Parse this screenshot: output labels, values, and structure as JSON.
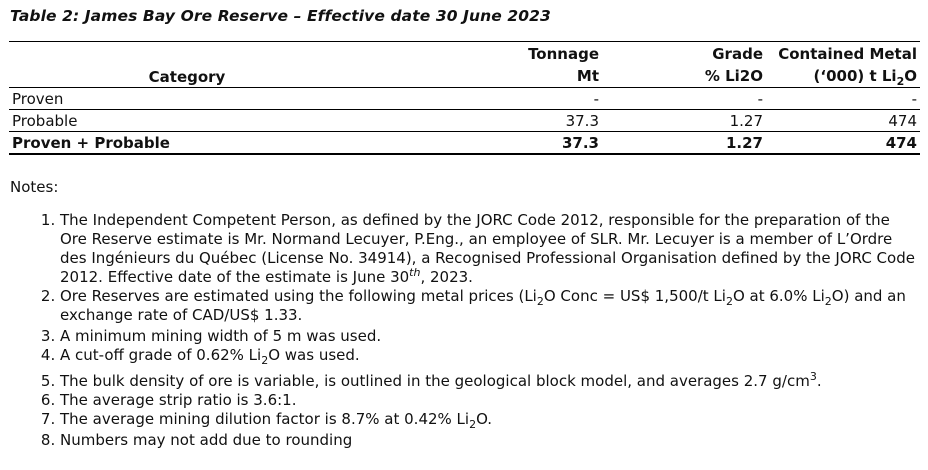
{
  "caption": "Table 2: James Bay Ore Reserve – Effective date 30 June 2023",
  "table": {
    "header": {
      "category": "Category",
      "tonnage": "Tonnage",
      "tonnage_unit": "Mt",
      "grade": "Grade",
      "grade_unit": "% Li2O",
      "contained": "Contained Metal",
      "contained_unit_prefix": "(‘000) t Li",
      "contained_unit_sub": "2",
      "contained_unit_suffix": "O"
    },
    "rows": [
      {
        "category": "Proven",
        "tonnage": "-",
        "grade": "-",
        "contained": "-"
      },
      {
        "category": "Probable",
        "tonnage": "37.3",
        "grade": "1.27",
        "contained": "474"
      },
      {
        "category": "Proven + Probable",
        "tonnage": "37.3",
        "grade": "1.27",
        "contained": "474"
      }
    ]
  },
  "notes_title": "Notes:",
  "notes": {
    "n1": {
      "a": "The Independent Competent Person, as defined by the JORC Code 2012, responsible for the preparation of the Ore Reserve estimate is Mr. Normand Lecuyer, P.Eng., an employee of SLR. Mr. Lecuyer is a member of L’Ordre des Ingénieurs du Québec (License No. 34914), a Recognised Professional Organisation defined by the JORC Code 2012. Effective date of the estimate is June 30",
      "sup": "th",
      "b": ", 2023."
    },
    "n2": {
      "a": "Ore Reserves are estimated using the following metal prices (Li",
      "sub1": "2",
      "b": "O Conc = US$ 1,500/t Li",
      "sub2": "2",
      "c": "O at 6.0% Li",
      "sub3": "2",
      "d": "O) and an exchange rate of CAD/US$ 1.33."
    },
    "n3": "A minimum mining width of 5 m was used.",
    "n4": {
      "a": "A cut-off grade of 0.62% Li",
      "sub": "2",
      "b": "O was used."
    },
    "n5": {
      "a": "The bulk density of ore is variable, is outlined in the geological block model, and averages 2.7 g/cm",
      "sup": "3",
      "b": "."
    },
    "n6": "The average strip ratio is 3.6:1.",
    "n7": {
      "a": "The average mining dilution factor is 8.7% at 0.42% Li",
      "sub": "2",
      "b": "O."
    },
    "n8": "Numbers may not add due to rounding"
  }
}
